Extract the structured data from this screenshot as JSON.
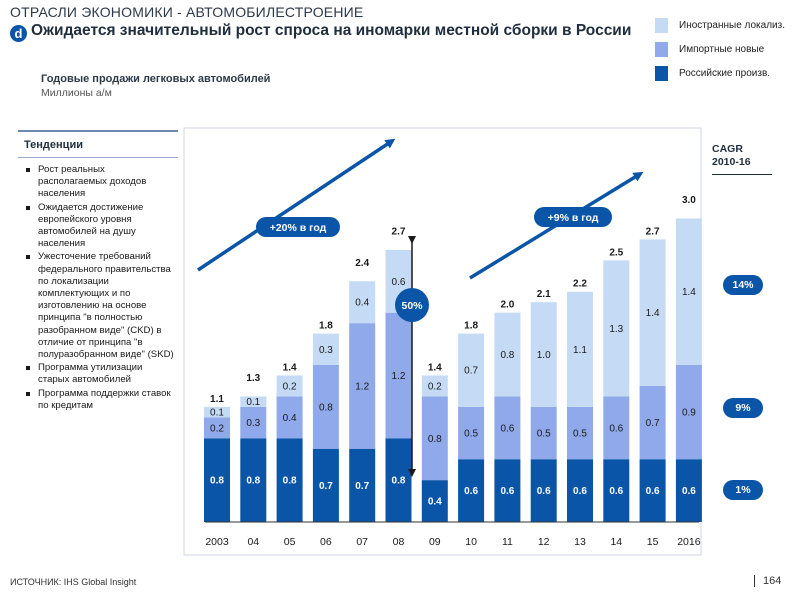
{
  "header": {
    "section_title": "ОТРАСЛИ ЭКОНОМИКИ - АВТОМОБИЛЕСТРОЕНИЕ",
    "badge": "d",
    "headline": "Ожидается значительный рост спроса на иномарки местной сборки в России",
    "subtitle": "Годовые продажи легковых автомобилей",
    "units": "Миллионы а/м"
  },
  "legend": [
    {
      "label": "Иностранные локализ.",
      "color": "#c5dbf5"
    },
    {
      "label": "Импортные новые",
      "color": "#8fa9ea"
    },
    {
      "label": "Российские произв.",
      "color": "#0a55a8"
    }
  ],
  "trends": {
    "title": "Тенденции",
    "items": [
      "Рост реальных располагаемых доходов населения",
      "Ожидается достижение европейского уровня автомобилей на душу населения",
      "Ужесточение требований федерального правительства по локализации комплектующих и по изготовлению на основе принципа \"в полностью разобранном виде\" (CKD) в отличие от принципа \"в полуразобранном виде\" (SKD)",
      "Программа утилизации старых автомобилей",
      "Программа поддержки ставок по кредитам"
    ]
  },
  "chart_data": {
    "type": "bar",
    "stacked": true,
    "title": "Годовые продажи легковых автомобилей",
    "ylabel": "Миллионы а/м",
    "categories": [
      "2003",
      "04",
      "05",
      "06",
      "07",
      "08",
      "09",
      "10",
      "11",
      "12",
      "13",
      "14",
      "15",
      "2016"
    ],
    "series": [
      {
        "name": "Российские произв.",
        "color": "#0a55a8",
        "values": [
          0.8,
          0.8,
          0.8,
          0.7,
          0.7,
          0.8,
          0.4,
          0.6,
          0.6,
          0.6,
          0.6,
          0.6,
          0.6,
          0.6
        ],
        "labels": [
          "0.8",
          "0.8",
          "0.8",
          "0.7",
          "0.7",
          "0.8",
          "0.4",
          "0.6",
          "0.6",
          "0.6",
          "0.6",
          "0.6",
          "0.6",
          "0.6"
        ]
      },
      {
        "name": "Импортные новые",
        "color": "#8fa9ea",
        "values": [
          0.2,
          0.3,
          0.4,
          0.8,
          1.2,
          1.2,
          0.8,
          0.5,
          0.6,
          0.5,
          0.5,
          0.6,
          0.7,
          0.9
        ],
        "labels": [
          "0.2",
          "0.3",
          "0.4",
          "0.8",
          "1.2",
          "1.2",
          "0.8",
          "0.5",
          "0.6",
          "0.5",
          "0.5",
          "0.6",
          "0.7",
          "0.9"
        ]
      },
      {
        "name": "Иностранные локализ.",
        "color": "#c5dbf5",
        "values": [
          0.1,
          0.1,
          0.2,
          0.3,
          0.4,
          0.6,
          0.2,
          0.7,
          0.8,
          1.0,
          1.1,
          1.3,
          1.4,
          1.4
        ],
        "labels": [
          "0.1",
          "0.1",
          "0.2",
          "0.3",
          "0.4",
          "0.6",
          "0.2",
          "0.7",
          "0.8",
          "1.0",
          "1.1",
          "1.3",
          "1.4",
          "1.4"
        ]
      }
    ],
    "totals": [
      1.1,
      1.3,
      1.4,
      1.8,
      2.4,
      2.7,
      1.4,
      1.8,
      2.0,
      2.1,
      2.2,
      2.5,
      2.7,
      3.0
    ],
    "total_labels": [
      "1.1",
      "1.3",
      "1.4",
      "1.8",
      "2.4",
      "2.7",
      "1.4",
      "1.8",
      "2.0",
      "2.1",
      "2.2",
      "2.5",
      "2.7",
      "3.0"
    ],
    "ylim": [
      0,
      3.0
    ],
    "annotations": {
      "growth_left": "+20% в год",
      "growth_right": "+9% в год",
      "drop": "50%"
    },
    "cagr_title": "CAGR 2010-16",
    "cagr": [
      "14%",
      "9%",
      "1%"
    ]
  },
  "footer": {
    "source": "ИСТОЧНИК: IHS Global Insight",
    "page": "164"
  }
}
